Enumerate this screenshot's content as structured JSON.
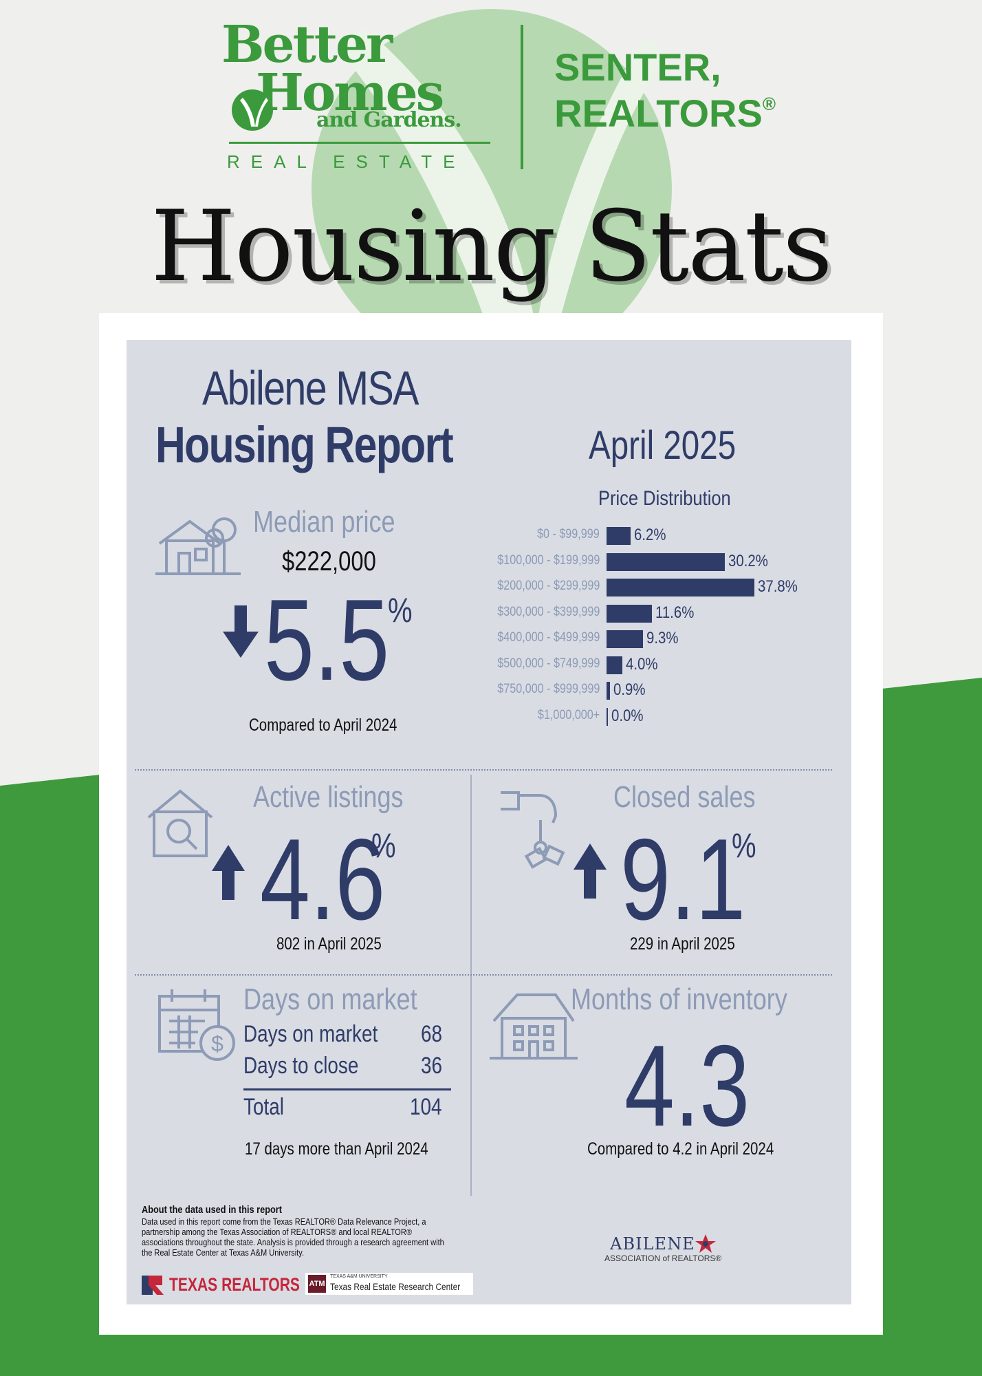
{
  "colors": {
    "brand_green": "#3b9a3c",
    "navy": "#2f3c68",
    "muted_blue": "#8d9bb6",
    "card_bg": "#d9dce3",
    "texas_red": "#c5263b"
  },
  "brand": {
    "line1": "Better",
    "line2": "Homes",
    "line3": "and Gardens.",
    "real_estate": "REAL ESTATE",
    "office_line1": "SENTER,",
    "office_line2": "REALTORS",
    "registered": "®",
    "icon": "leaf-check-icon"
  },
  "page_title": "Housing Stats",
  "report": {
    "title_line1": "Abilene MSA",
    "title_line2": "Housing Report",
    "month": "April 2025"
  },
  "price_distribution": {
    "title": "Price Distribution"
  },
  "chart_data": {
    "type": "bar",
    "orientation": "horizontal",
    "title": "Price Distribution",
    "categories": [
      "$0 - $99,999",
      "$100,000 - $199,999",
      "$200,000 - $299,999",
      "$300,000 - $399,999",
      "$400,000 - $499,999",
      "$500,000 - $749,999",
      "$750,000 - $999,999",
      "$1,000,000+"
    ],
    "values": [
      6.2,
      30.2,
      37.8,
      11.6,
      9.3,
      4.0,
      0.9,
      0.0
    ],
    "value_labels": [
      "6.2%",
      "30.2%",
      "37.8%",
      "11.6%",
      "9.3%",
      "4.0%",
      "0.9%",
      "0.0%"
    ],
    "xlim": [
      0,
      40
    ],
    "grid": false
  },
  "median_price": {
    "label": "Median price",
    "value": "$222,000",
    "change": "5.5",
    "unit": "%",
    "direction": "down",
    "note": "Compared to April 2024",
    "icon": "house-tree-icon"
  },
  "active_listings": {
    "label": "Active listings",
    "change": "4.6",
    "unit": "%",
    "direction": "up",
    "note": "802 in April 2025",
    "icon": "house-search-icon"
  },
  "closed_sales": {
    "label": "Closed sales",
    "change": "9.1",
    "unit": "%",
    "direction": "up",
    "note": "229 in April 2025",
    "icon": "hand-keys-icon"
  },
  "days_on_market": {
    "label": "Days on market",
    "rows": [
      {
        "label": "Days on market",
        "value": "68"
      },
      {
        "label": "Days to close",
        "value": "36"
      }
    ],
    "total_label": "Total",
    "total_value": "104",
    "note": "17 days more than April 2024",
    "icon": "calendar-dollar-icon"
  },
  "months_inventory": {
    "label": "Months of inventory",
    "value": "4.3",
    "note": "Compared to 4.2 in April 2024",
    "icon": "building-icon"
  },
  "footer": {
    "heading": "About the data used in this report",
    "text": "Data used in this report come from the Texas REALTOR® Data Relevance Project, a partnership among the Texas Association of REALTORS® and local REALTOR® associations throughout the state. Analysis is provided through a research agreement with the Real Estate Center at Texas A&M University.",
    "texas_realtors": "TEXAS REALTORS",
    "tamu_small": "TEXAS A&M UNIVERSITY",
    "tamu_center": "Texas Real Estate Research Center",
    "tamu_mark": "ATM",
    "abilene_name": "ABILENE",
    "abilene_sub": "ASSOCIATION of REALTORS®"
  }
}
